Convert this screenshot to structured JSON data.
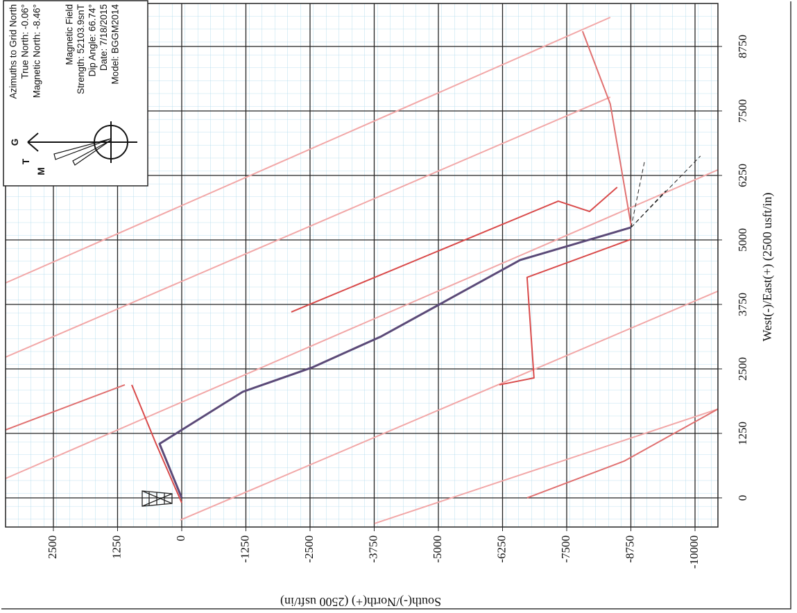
{
  "chart_data": {
    "type": "line",
    "x_label": "South(-)/North(+) (2500 usft/in)",
    "y_label": "West(-)/East(+) (2500 usft/in)",
    "xlim": [
      3432,
      -10446
    ],
    "ylim": [
      -565,
      9583
    ],
    "xticks": [
      2500,
      1250,
      0,
      -1250,
      -2500,
      -3750,
      -5000,
      -6250,
      -7500,
      -8750,
      -10000
    ],
    "yticks": [
      0,
      1250,
      2500,
      3750,
      5000,
      6250,
      7500,
      8750
    ],
    "grid": true,
    "series": [
      {
        "color": "#f2a7a7",
        "x": [
          3432,
          -8349
        ],
        "values": [
          4166,
          9314
        ]
      },
      {
        "color": "#f2a7a7",
        "x": [
          3432,
          -8349
        ],
        "values": [
          2728,
          7768
        ]
      },
      {
        "color": "#f2a7a7",
        "x": [
          3432,
          -10443
        ],
        "values": [
          376,
          6357
        ]
      },
      {
        "color": "#f2a7a7",
        "x": [
          27,
          -10443
        ],
        "values": [
          -430,
          4005
        ]
      },
      {
        "color": "#f2a7a7",
        "x": [
          -3756,
          -10443
        ],
        "values": [
          -497,
          1720
        ]
      },
      {
        "color": "#d94a4a",
        "x": [
          973,
          500,
          0
        ],
        "values": [
          2191,
          1048,
          -94
        ]
      },
      {
        "color": "#e07070",
        "x": [
          3432,
          1108
        ],
        "values": [
          1317,
          2191
        ]
      },
      {
        "color": "#d94a4a",
        "x": [
          -2135,
          -7336,
          -7944,
          -8484
        ],
        "values": [
          3602,
          5752,
          5551,
          6021
        ]
      },
      {
        "color": "#d94a4a",
        "x": [
          -6188,
          -6863,
          -6728,
          -8754
        ],
        "values": [
          2191,
          2325,
          4274,
          5013
        ]
      },
      {
        "color": "#e07070",
        "x": [
          -6728,
          -8619,
          -10443
        ],
        "values": [
          0,
          712,
          1720
        ]
      },
      {
        "color": "#e07070",
        "x": [
          -7809,
          -8349,
          -8754
        ],
        "values": [
          9045,
          7634,
          5282
        ]
      },
      {
        "color": "#222222",
        "dashed": true,
        "x": [
          -8754,
          -10105
        ],
        "values": [
          5242,
          6626
        ]
      },
      {
        "color": "#222222",
        "dashed": true,
        "x": [
          -8754,
          -9430
        ],
        "values": [
          5242,
          5954
        ]
      },
      {
        "color": "#222222",
        "dashed": true,
        "x": [
          -8754,
          -9024
        ],
        "values": [
          5242,
          6559
        ]
      },
      {
        "color": "#5b4a78",
        "width": 3,
        "x": [
          0,
          432,
          0,
          -1189,
          -2540,
          -3891,
          -5242,
          -6593,
          -8754
        ],
        "values": [
          0,
          1048,
          1317,
          2056,
          2527,
          3132,
          3871,
          4610,
          5242
        ]
      }
    ],
    "annotations": {
      "azimuths": [
        "Azimuths to Grid North",
        "True North: -0.06°",
        "Magnetic North: -8.46°"
      ],
      "magnetic": [
        "Magnetic Field",
        "Strength: 52103.9snT",
        "Dip Angle: 66.74°",
        "Date: 7/18/2015",
        "Model: BGGM2014"
      ],
      "compass": [
        "G",
        "T",
        "M"
      ]
    }
  }
}
